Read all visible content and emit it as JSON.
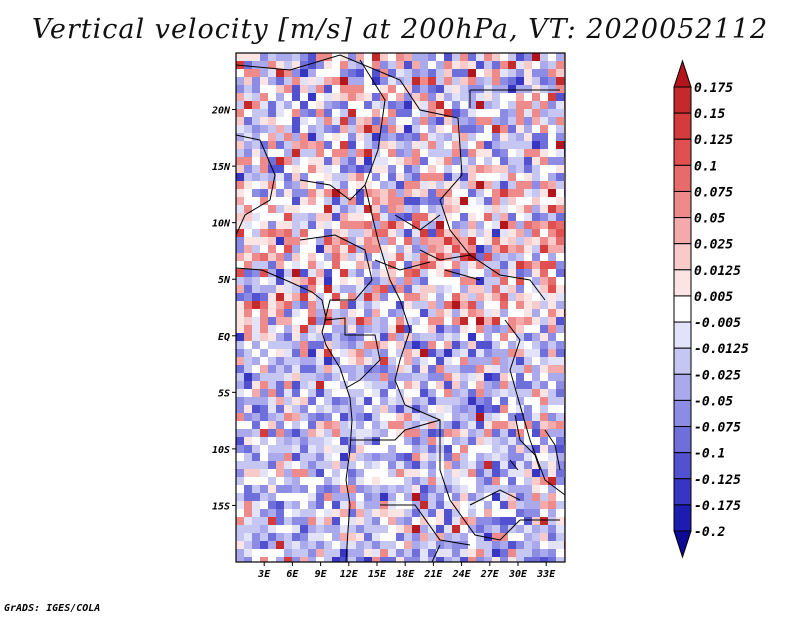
{
  "title": "Vertical velocity [m/s] at 200hPa, VT: 2020052112",
  "credit": "GrADS: IGES/COLA",
  "map": {
    "lat_labels": [
      "20N",
      "15N",
      "10N",
      "5N",
      "EQ",
      "5S",
      "10S",
      "15S"
    ],
    "lat_values": [
      20,
      15,
      10,
      5,
      0,
      -5,
      -10,
      -15
    ],
    "lon_labels": [
      "3E",
      "6E",
      "9E",
      "12E",
      "15E",
      "18E",
      "21E",
      "24E",
      "27E",
      "30E",
      "33E"
    ],
    "lon_values": [
      3,
      6,
      9,
      12,
      15,
      18,
      21,
      24,
      27,
      30,
      33
    ],
    "lat_range": [
      -20,
      25
    ],
    "lon_range": [
      0,
      35
    ]
  },
  "colorbar": {
    "labels": [
      "0.175",
      "0.15",
      "0.125",
      "0.1",
      "0.075",
      "0.05",
      "0.025",
      "0.0125",
      "0.005",
      "-0.005",
      "-0.0125",
      "-0.025",
      "-0.05",
      "-0.075",
      "-0.1",
      "-0.125",
      "-0.175",
      "-0.2"
    ],
    "colors": [
      "#b2161c",
      "#c52a2a",
      "#d43b3b",
      "#e05050",
      "#e66c6c",
      "#ee8a8a",
      "#f4aaaa",
      "#f8caca",
      "#fbe4e4",
      "#ffffff",
      "#e2e2f8",
      "#c6c6f2",
      "#a9a9ec",
      "#8c8ce4",
      "#6f6fdc",
      "#5252d0",
      "#3636c2",
      "#1c1cb0",
      "#0b0b96"
    ]
  }
}
